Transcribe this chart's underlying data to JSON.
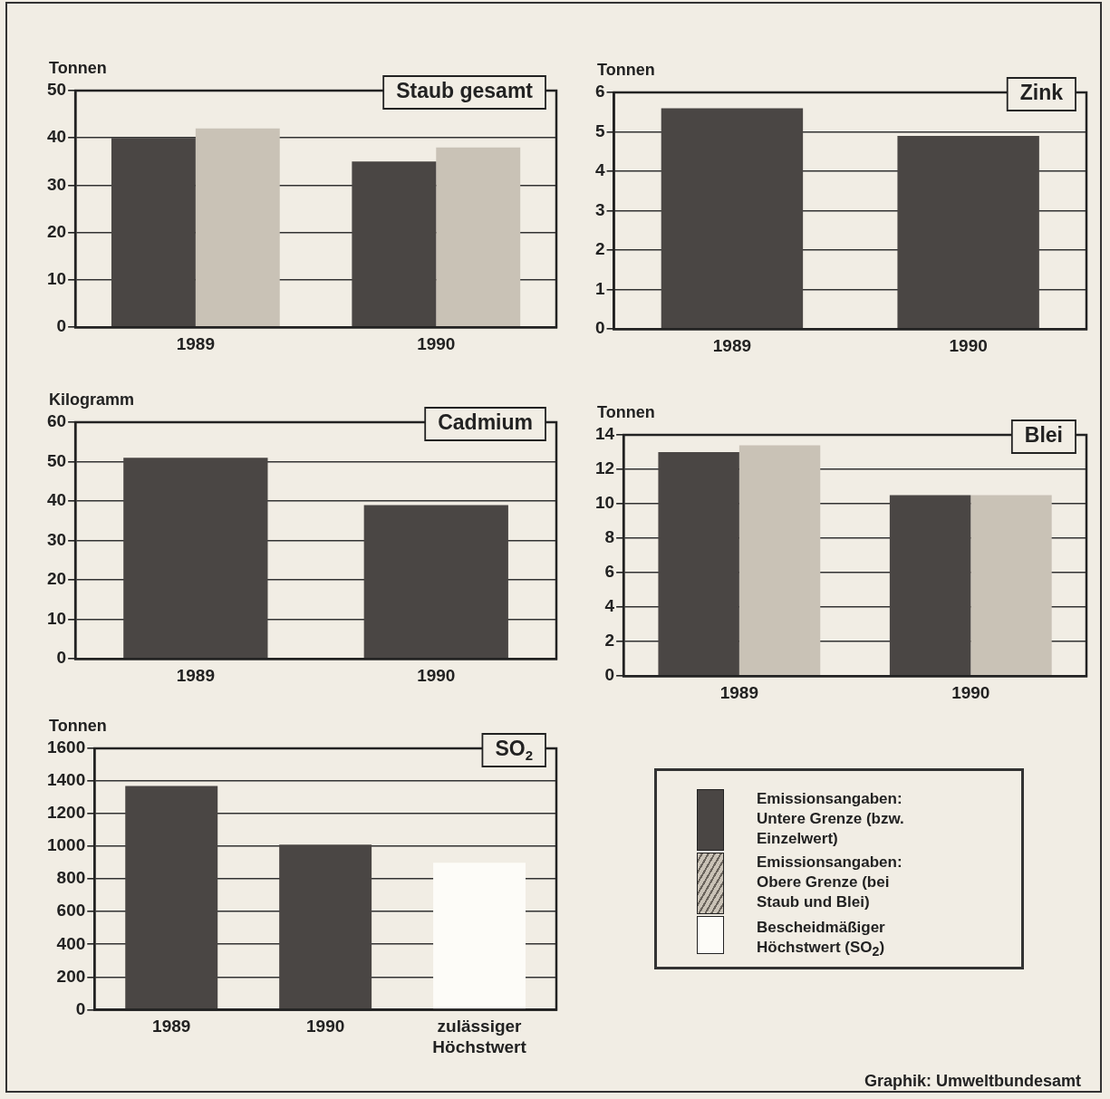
{
  "chart_data": [
    {
      "type": "bar",
      "title": "Staub gesamt",
      "ylabel": "Tonnen",
      "categories": [
        "1989",
        "1990"
      ],
      "series": [
        {
          "color": "#4a4644",
          "values": [
            40,
            35
          ]
        },
        {
          "color": "#c9c2b6",
          "values": [
            42,
            38
          ]
        }
      ],
      "ylim": [
        0,
        50
      ],
      "yticks": [
        0,
        10,
        20,
        30,
        40,
        50
      ],
      "grid": "y",
      "legend": false
    },
    {
      "type": "bar",
      "title": "Zink",
      "ylabel": "Tonnen",
      "categories": [
        "1989",
        "1990"
      ],
      "series": [
        {
          "color": "#4a4644",
          "values": [
            5.6,
            4.9
          ]
        }
      ],
      "ylim": [
        0,
        6
      ],
      "yticks": [
        0,
        1,
        2,
        3,
        4,
        5,
        6
      ],
      "grid": "y",
      "legend": false
    },
    {
      "type": "bar",
      "title": "Cadmium",
      "ylabel": "Kilogramm",
      "categories": [
        "1989",
        "1990"
      ],
      "series": [
        {
          "color": "#4a4644",
          "values": [
            51,
            39
          ]
        }
      ],
      "ylim": [
        0,
        60
      ],
      "yticks": [
        0,
        10,
        20,
        30,
        40,
        50,
        60
      ],
      "grid": "y",
      "legend": false
    },
    {
      "type": "bar",
      "title": "Blei",
      "ylabel": "Tonnen",
      "categories": [
        "1989",
        "1990"
      ],
      "series": [
        {
          "color": "#4a4644",
          "values": [
            13,
            10.5
          ]
        },
        {
          "color": "#c9c2b6",
          "values": [
            13.4,
            10.5
          ]
        }
      ],
      "ylim": [
        0,
        14
      ],
      "yticks": [
        0,
        2,
        4,
        6,
        8,
        10,
        12,
        14
      ],
      "grid": "y",
      "legend": false
    },
    {
      "type": "bar",
      "title": "SO$_{2}$",
      "ylabel": "Tonnen",
      "categories": [
        "1989",
        "1990",
        "zulässiger Höchstwert"
      ],
      "values": [
        1370,
        1010,
        900
      ],
      "colors": [
        "#4a4644",
        "#4a4644",
        "#fdfcf8"
      ],
      "ylim": [
        0,
        1600
      ],
      "yticks": [
        0,
        200,
        400,
        600,
        800,
        1000,
        1200,
        1400,
        1600
      ],
      "grid": "y",
      "legend": false
    },
    {
      "type": "other",
      "annotations": [
        "Emissionsangaben: Untere Grenze (bzw. Einzelwert)",
        "Emissionsangaben: Obere Grenze (bei Staub und Blei)",
        "Bescheidmäßiger Höchstwert (SO$_{2}$)",
        "Graphik: Umweltbundesamt"
      ]
    }
  ]
}
